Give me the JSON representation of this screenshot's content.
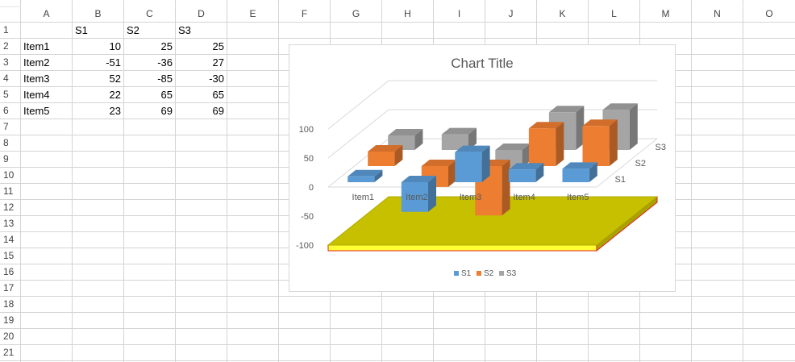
{
  "columns": [
    "A",
    "B",
    "C",
    "D",
    "E",
    "F",
    "G",
    "H",
    "I",
    "J",
    "K",
    "L",
    "M",
    "N",
    "O"
  ],
  "rows": [
    "1",
    "2",
    "3",
    "4",
    "5",
    "6",
    "7",
    "8",
    "9",
    "10",
    "11",
    "12",
    "13",
    "14",
    "15",
    "16",
    "17",
    "18",
    "19",
    "20",
    "21"
  ],
  "cells": [
    [
      "",
      "S1",
      "S2",
      "S3"
    ],
    [
      "Item1",
      "10",
      "25",
      "25"
    ],
    [
      "Item2",
      "-51",
      "-36",
      "27"
    ],
    [
      "Item3",
      "52",
      "-85",
      "-30"
    ],
    [
      "Item4",
      "22",
      "65",
      "65"
    ],
    [
      "Item5",
      "23",
      "69",
      "69"
    ]
  ],
  "chart_data": {
    "type": "bar",
    "title": "Chart Title",
    "categories": [
      "Item1",
      "Item2",
      "Item3",
      "Item4",
      "Item5"
    ],
    "series": [
      {
        "name": "S1",
        "values": [
          10,
          -51,
          52,
          22,
          23
        ],
        "color": "#5b9bd5"
      },
      {
        "name": "S2",
        "values": [
          25,
          -36,
          -85,
          65,
          69
        ],
        "color": "#ed7d31"
      },
      {
        "name": "S3",
        "values": [
          25,
          27,
          -30,
          65,
          69
        ],
        "color": "#a5a5a5"
      }
    ],
    "yticks": [
      "100",
      "50",
      "0",
      "-50",
      "-100"
    ],
    "ylim": [
      -100,
      100
    ],
    "depth_labels": [
      "S1",
      "S2",
      "S3"
    ],
    "legend_placement": "bottom",
    "floor_color": "#c6c000",
    "floor_edge_color": "#ffff33",
    "floor_border_color": "#e02020"
  }
}
